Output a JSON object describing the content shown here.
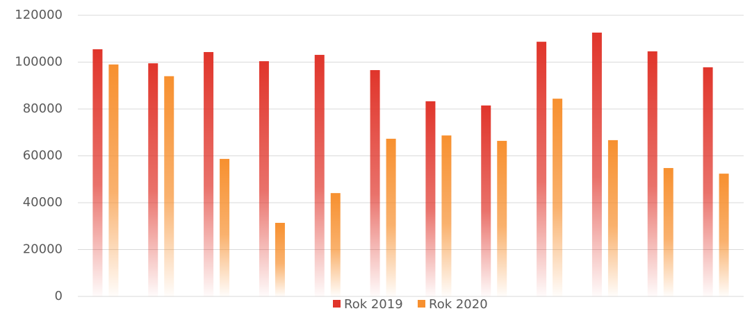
{
  "chart_data": {
    "type": "bar",
    "categories": [
      null,
      null,
      null,
      null,
      null,
      null,
      null,
      null,
      null,
      null,
      null,
      null
    ],
    "series": [
      {
        "name": "Rok 2019",
        "color": "#e0352b",
        "values": [
          105500,
          99500,
          104300,
          100400,
          103100,
          96600,
          83300,
          81500,
          108700,
          112600,
          104600,
          97800
        ]
      },
      {
        "name": "Rok 2020",
        "color": "#f7902f",
        "values": [
          99000,
          94000,
          58700,
          31400,
          44100,
          67300,
          68700,
          66400,
          84400,
          66700,
          54800,
          52400
        ]
      }
    ],
    "ylim": [
      0,
      120000
    ],
    "yticks": [
      0,
      20000,
      40000,
      60000,
      80000,
      100000,
      120000
    ],
    "grid": true,
    "legend": "bottom"
  }
}
